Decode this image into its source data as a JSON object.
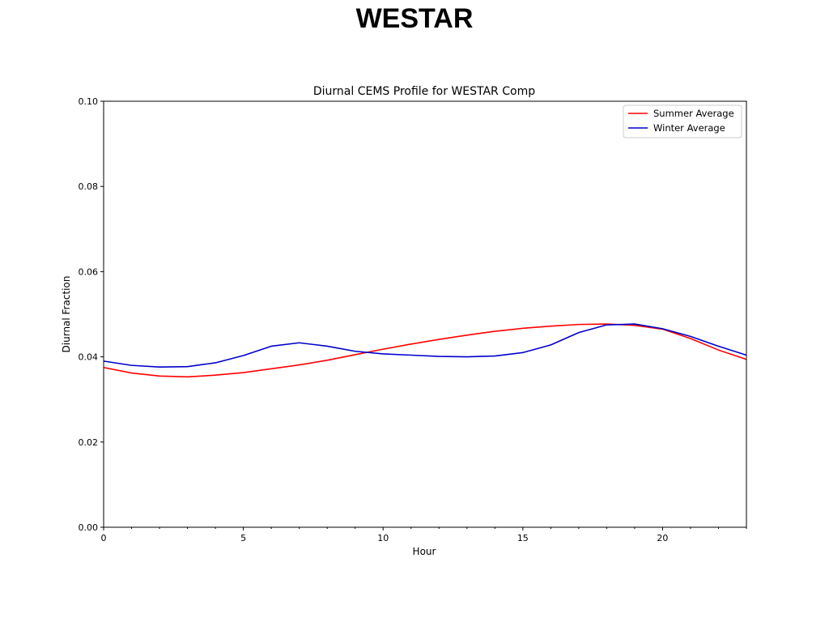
{
  "page": {
    "title": "WESTAR"
  },
  "chart_data": {
    "type": "line",
    "title": "Diurnal CEMS Profile for WESTAR Comp",
    "xlabel": "Hour",
    "ylabel": "Diurnal Fraction",
    "xlim": [
      0,
      23
    ],
    "ylim": [
      0,
      0.1
    ],
    "xticks": [
      "0",
      "5",
      "10",
      "15",
      "20"
    ],
    "yticks": [
      "0.00",
      "0.02",
      "0.04",
      "0.06",
      "0.08",
      "0.10"
    ],
    "grid": false,
    "legend_position": "top-right",
    "x": [
      0,
      1,
      2,
      3,
      4,
      5,
      6,
      7,
      8,
      9,
      10,
      11,
      12,
      13,
      14,
      15,
      16,
      17,
      18,
      19,
      20,
      21,
      22,
      23
    ],
    "series": [
      {
        "name": "Summer Average",
        "color": "#ff0000",
        "values": [
          0.0375,
          0.0362,
          0.0355,
          0.0353,
          0.0357,
          0.0363,
          0.0372,
          0.0381,
          0.0392,
          0.0405,
          0.0418,
          0.043,
          0.0441,
          0.0451,
          0.046,
          0.0467,
          0.0472,
          0.0476,
          0.0477,
          0.0474,
          0.0465,
          0.0443,
          0.0416,
          0.0394
        ]
      },
      {
        "name": "Winter Average",
        "color": "#0000cc",
        "values": [
          0.039,
          0.038,
          0.0376,
          0.0377,
          0.0386,
          0.0403,
          0.0425,
          0.0433,
          0.0425,
          0.0413,
          0.0407,
          0.0404,
          0.0401,
          0.04,
          0.0402,
          0.041,
          0.0428,
          0.0457,
          0.0475,
          0.0477,
          0.0466,
          0.0448,
          0.0425,
          0.0404
        ]
      }
    ]
  }
}
